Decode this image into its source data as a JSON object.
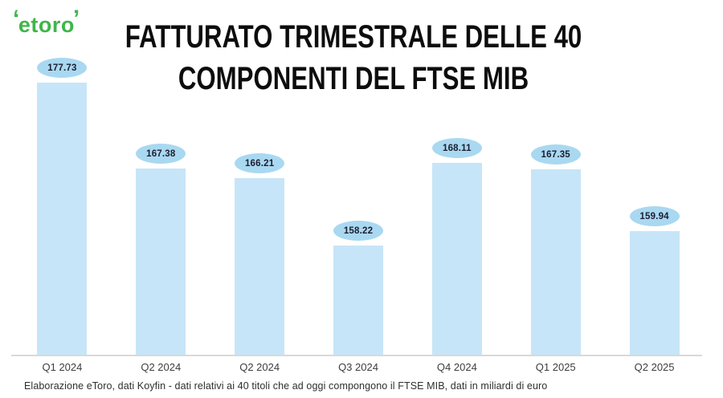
{
  "brand": {
    "logo_text": "etoro",
    "logo_color": "#3eb649",
    "horn_left": "‘",
    "horn_right": "’"
  },
  "title": {
    "line1": "FATTURATO TRIMESTRALE DELLE 40",
    "line2": "COMPONENTI DEL FTSE MIB"
  },
  "chart_data": {
    "type": "bar",
    "title": "FATTURATO TRIMESTRALE DELLE 40 COMPONENTI DEL FTSE MIB",
    "categories": [
      "Q1 2024",
      "Q2 2024",
      "Q2 2024",
      "Q3 2024",
      "Q4 2024",
      "Q1 2025",
      "Q2 2025"
    ],
    "values": [
      177.73,
      167.38,
      166.21,
      158.22,
      168.11,
      167.35,
      159.94
    ],
    "value_labels": [
      "177.73",
      "167.38",
      "166.21",
      "158.22",
      "168.11",
      "167.35",
      "159.94"
    ],
    "xlabel": "",
    "ylabel": "",
    "ylim": [
      145,
      180
    ],
    "grid": false,
    "legend": false,
    "bar_color": "#c7e5f8",
    "label_bubble_color": "#a9d8f1",
    "axis_line_color": "#d9d9d9"
  },
  "footer": {
    "note": "Elaborazione eToro, dati Koyfin  - dati relativi ai 40 titoli che ad oggi compongono il FTSE MIB, dati in miliardi di euro"
  }
}
